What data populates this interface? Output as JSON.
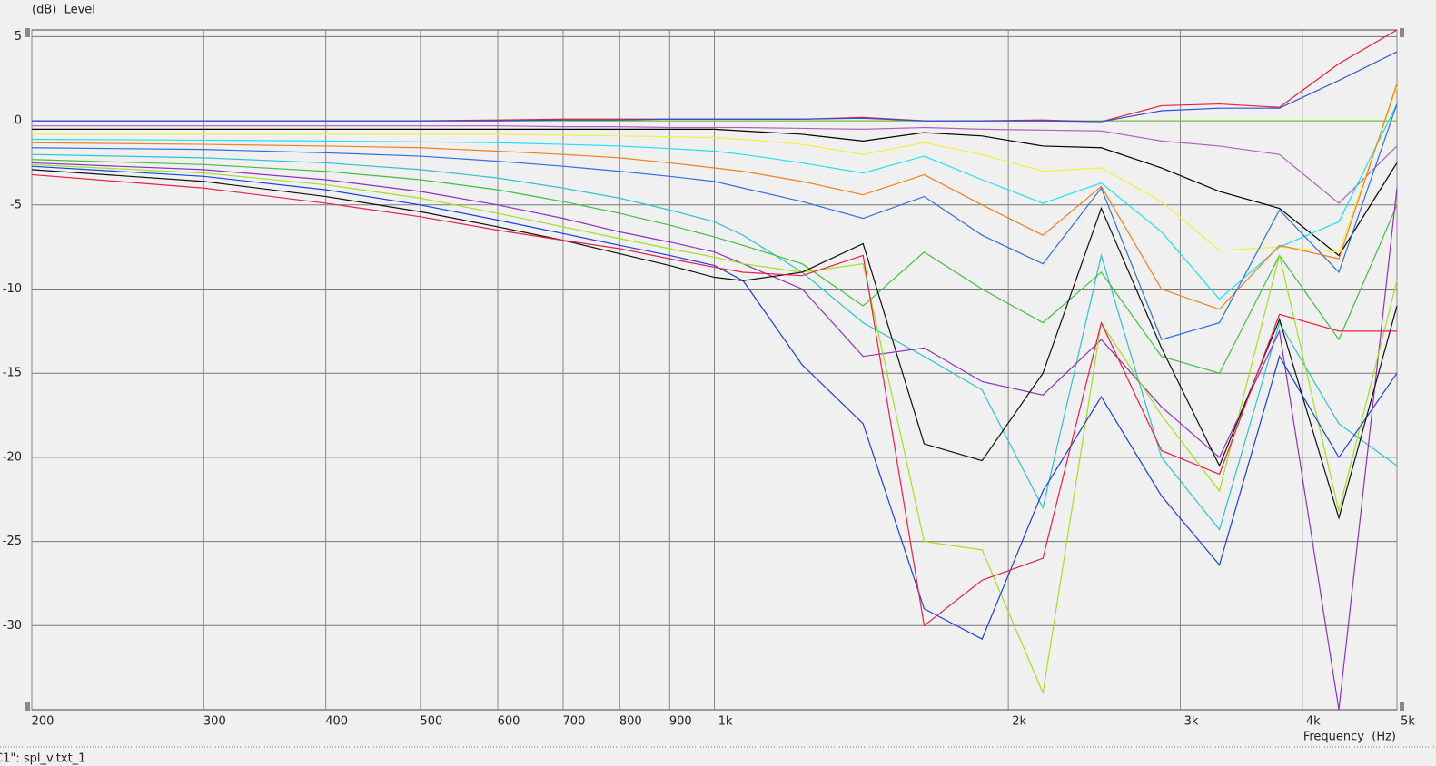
{
  "chart_data": {
    "type": "line",
    "y_label": "(dB)  Level",
    "x_label": "Frequency  (Hz)",
    "status": "C1\": spl_v.txt_1",
    "xscale": "log",
    "grid": true,
    "xlim": [
      200,
      5000
    ],
    "ylim": [
      -35,
      5.4
    ],
    "xticks": [
      200,
      300,
      400,
      500,
      600,
      700,
      800,
      900,
      {
        "value": 1000,
        "label": "1k"
      },
      {
        "value": 2000,
        "label": "2k"
      },
      {
        "value": 3000,
        "label": "3k"
      },
      {
        "value": 4000,
        "label": "4k"
      },
      {
        "value": 5000,
        "label": "5k"
      }
    ],
    "yticks": [
      5,
      0,
      -5,
      -10,
      -15,
      -20,
      -25,
      -30
    ],
    "x": [
      200,
      300,
      400,
      500,
      600,
      700,
      800,
      900,
      1000,
      1070,
      1230,
      1420,
      1640,
      1880,
      2170,
      2490,
      2870,
      3290,
      3790,
      4360,
      5000
    ],
    "series": [
      {
        "color": "#7fbf3f",
        "values": [
          0,
          0,
          0,
          0,
          0,
          0,
          0,
          0,
          0,
          0,
          0,
          0,
          0,
          0,
          0,
          0,
          0,
          0,
          0,
          0,
          0
        ]
      },
      {
        "color": "#e8203a",
        "values": [
          0,
          0,
          0,
          0,
          0.05,
          0.1,
          0.1,
          0.1,
          0.1,
          0.1,
          0.1,
          0.2,
          0,
          0,
          0.05,
          -0.05,
          0.9,
          1.0,
          0.8,
          3.4,
          5.4
        ]
      },
      {
        "color": "#2a4fd8",
        "values": [
          0,
          0,
          0,
          0,
          0,
          0.05,
          0.05,
          0.1,
          0.1,
          0.1,
          0.1,
          0.15,
          0,
          0,
          0,
          -0.05,
          0.6,
          0.75,
          0.75,
          2.4,
          4.1
        ]
      },
      {
        "color": "#b060c0",
        "values": [
          -0.3,
          -0.3,
          -0.3,
          -0.3,
          -0.3,
          -0.35,
          -0.35,
          -0.4,
          -0.4,
          -0.4,
          -0.45,
          -0.5,
          -0.4,
          -0.5,
          -0.55,
          -0.6,
          -1.2,
          -1.5,
          -2.0,
          -4.9,
          -1.5
        ]
      },
      {
        "color": "#000000",
        "values": [
          -0.5,
          -0.5,
          -0.5,
          -0.5,
          -0.5,
          -0.5,
          -0.5,
          -0.5,
          -0.5,
          -0.6,
          -0.8,
          -1.2,
          -0.7,
          -0.9,
          -1.5,
          -1.6,
          -2.8,
          -4.2,
          -5.2,
          -8.0,
          -2.5
        ]
      },
      {
        "color": "#f0f040",
        "values": [
          -0.8,
          -0.8,
          -0.8,
          -0.8,
          -0.8,
          -0.85,
          -0.9,
          -0.95,
          -1.0,
          -1.1,
          -1.4,
          -2.0,
          -1.3,
          -2.0,
          -3.0,
          -2.8,
          -4.8,
          -7.7,
          -7.5,
          -7.8,
          2.0
        ]
      },
      {
        "color": "#20e0f0",
        "values": [
          -1.1,
          -1.15,
          -1.2,
          -1.25,
          -1.3,
          -1.4,
          -1.5,
          -1.65,
          -1.8,
          -2.0,
          -2.5,
          -3.1,
          -2.1,
          -3.5,
          -4.9,
          -3.7,
          -6.6,
          -10.6,
          -7.5,
          -6.0,
          1.0
        ]
      },
      {
        "color": "#f08020",
        "values": [
          -1.3,
          -1.4,
          -1.5,
          -1.6,
          -1.8,
          -2.0,
          -2.2,
          -2.5,
          -2.8,
          -3.0,
          -3.6,
          -4.4,
          -3.2,
          -5.0,
          -6.8,
          -3.9,
          -10.0,
          -11.2,
          -7.4,
          -8.2,
          2.2
        ]
      },
      {
        "color": "#3070e0",
        "values": [
          -1.6,
          -1.7,
          -1.9,
          -2.1,
          -2.4,
          -2.7,
          -3.0,
          -3.3,
          -3.6,
          -4.0,
          -4.8,
          -5.8,
          -4.5,
          -6.8,
          -8.5,
          -4.0,
          -13.0,
          -12.0,
          -5.3,
          -9.0,
          1.0
        ]
      },
      {
        "color": "#30c0d0",
        "values": [
          -2.0,
          -2.2,
          -2.5,
          -2.9,
          -3.4,
          -4.0,
          -4.6,
          -5.3,
          -6.0,
          -6.8,
          -9.0,
          -12.0,
          -14.0,
          -16.0,
          -23.0,
          -8.0,
          -20.0,
          -24.3,
          -12.0,
          -18.0,
          -20.5
        ]
      },
      {
        "color": "#40c040",
        "values": [
          -2.3,
          -2.6,
          -3.0,
          -3.5,
          -4.1,
          -4.8,
          -5.5,
          -6.2,
          -6.9,
          -7.4,
          -8.5,
          -11.0,
          -7.8,
          -10.0,
          -12.0,
          -9.0,
          -14.0,
          -15.0,
          -8.0,
          -13.0,
          -5.0
        ]
      },
      {
        "color": "#9030c0",
        "values": [
          -2.5,
          -2.9,
          -3.5,
          -4.2,
          -5.0,
          -5.8,
          -6.6,
          -7.2,
          -7.8,
          -8.5,
          -10.0,
          -14.0,
          -13.5,
          -15.5,
          -16.3,
          -13.0,
          -17.0,
          -20.0,
          -12.5,
          -35.0,
          -4.0
        ]
      },
      {
        "color": "#a0e020",
        "values": [
          -2.6,
          -3.1,
          -3.8,
          -4.6,
          -5.5,
          -6.3,
          -7.0,
          -7.6,
          -8.1,
          -8.5,
          -9.0,
          -8.5,
          -25.0,
          -25.5,
          -34.0,
          -12.0,
          -17.5,
          -22.0,
          -8.0,
          -23.2,
          -9.5
        ]
      },
      {
        "color": "#1a40e0",
        "values": [
          -2.7,
          -3.3,
          -4.1,
          -5.0,
          -5.9,
          -6.7,
          -7.4,
          -8.0,
          -8.6,
          -9.5,
          -14.5,
          -18.0,
          -29.0,
          -30.8,
          -22.0,
          -16.4,
          -22.3,
          -26.4,
          -14.0,
          -20.0,
          -15.0
        ]
      },
      {
        "color": "#101010",
        "values": [
          -2.9,
          -3.6,
          -4.5,
          -5.4,
          -6.3,
          -7.1,
          -7.9,
          -8.6,
          -9.3,
          -9.5,
          -9.0,
          -7.3,
          -19.2,
          -20.2,
          -15.0,
          -5.2,
          -13.5,
          -20.5,
          -11.8,
          -23.6,
          -11.0
        ]
      },
      {
        "color": "#e8204a",
        "values": [
          -3.2,
          -4.0,
          -4.9,
          -5.7,
          -6.5,
          -7.1,
          -7.6,
          -8.2,
          -8.7,
          -9.0,
          -9.2,
          -8.0,
          -30.0,
          -27.3,
          -26.0,
          -12.0,
          -19.6,
          -21.0,
          -11.5,
          -12.5,
          -12.5
        ]
      }
    ]
  }
}
